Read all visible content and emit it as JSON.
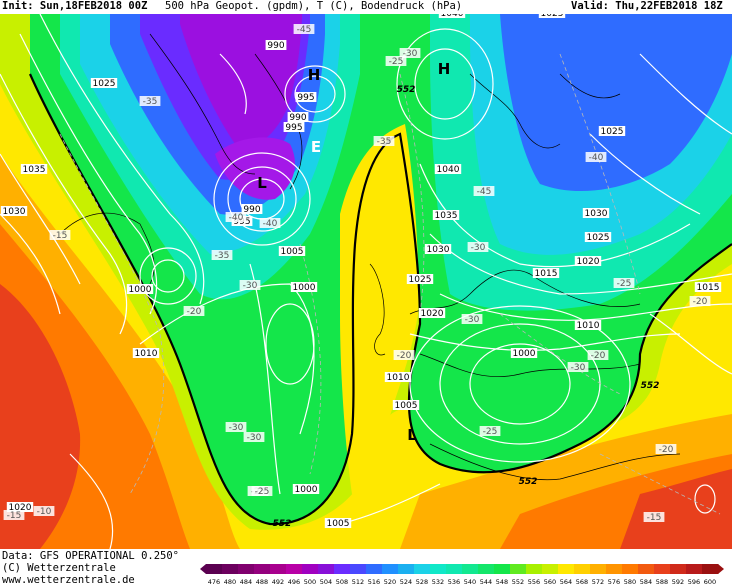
{
  "header": {
    "init": "Init: Sun,18FEB2018 00Z",
    "product": "500 hPa Geopot. (gpdm), T (C), Bodendruck (hPa)",
    "valid": "Valid: Thu,22FEB2018 18Z"
  },
  "footer": {
    "data_line": "Data: GFS OPERATIONAL 0.250°",
    "copyright_line": "(C) Wetterzentrale",
    "url_line": "www.wetterzentrale.de"
  },
  "colors": {
    "purple": "#9b10e0",
    "violet": "#6a2cff",
    "blue": "#2f6cff",
    "cyan": "#1bd2e8",
    "teal": "#10e8b0",
    "green": "#14e64a",
    "yellowgreen": "#c8f000",
    "yellow": "#ffe800",
    "orange": "#ffb000",
    "darkorange": "#ff7a00",
    "red": "#e8401c",
    "darkred": "#b81a1a"
  },
  "scale": {
    "labels": [
      "476",
      "480",
      "484",
      "488",
      "492",
      "496",
      "500",
      "504",
      "508",
      "512",
      "516",
      "520",
      "524",
      "528",
      "532",
      "536",
      "540",
      "544",
      "548",
      "552",
      "556",
      "560",
      "564",
      "568",
      "572",
      "576",
      "580",
      "584",
      "588",
      "592",
      "596",
      "600"
    ]
  },
  "pressure_centers": [
    {
      "symbol": "H",
      "name": "high-greenland"
    },
    {
      "symbol": "H",
      "name": "high-scandinavia"
    },
    {
      "symbol": "L",
      "name": "low-labrador"
    },
    {
      "symbol": "L",
      "name": "low-mediterranean"
    },
    {
      "symbol": "E",
      "name": "marker-e"
    }
  ],
  "isobar_labels": [
    "990",
    "995",
    "990",
    "995",
    "1025",
    "1035",
    "1030",
    "990",
    "995",
    "1000",
    "1010",
    "1005",
    "1000",
    "1040",
    "1035",
    "1030",
    "1025",
    "1020",
    "1025",
    "1030",
    "1025",
    "1020",
    "1015",
    "1010",
    "1000",
    "1010",
    "1005",
    "1000",
    "1005",
    "1020",
    "1015",
    "1040",
    "1025"
  ],
  "temp_labels": [
    "-45",
    "-35",
    "-40",
    "-40",
    "-15",
    "-35",
    "-30",
    "-30",
    "-20",
    "-25",
    "-30",
    "-25",
    "-20",
    "-35",
    "-30",
    "-25",
    "-40",
    "-45",
    "-30",
    "-25",
    "-20",
    "-30",
    "-30",
    "-25",
    "-20",
    "-15",
    "-10",
    "-15",
    "-20"
  ],
  "contour_552_label": "552"
}
